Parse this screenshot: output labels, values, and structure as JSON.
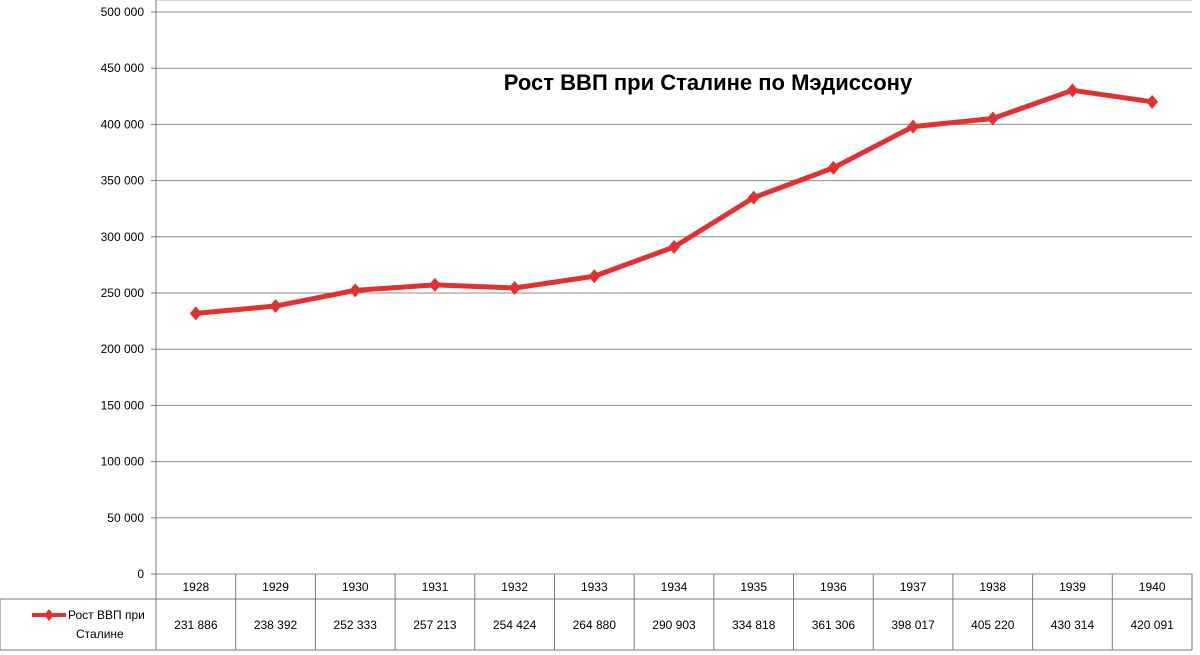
{
  "chart_data": {
    "type": "line",
    "title": "Рост ВВП при Сталине  по Мэдиссону",
    "categories": [
      "1928",
      "1929",
      "1930",
      "1931",
      "1932",
      "1933",
      "1934",
      "1935",
      "1936",
      "1937",
      "1938",
      "1939",
      "1940"
    ],
    "series": [
      {
        "name": "Рост ВВП при Сталине",
        "values": [
          231886,
          238392,
          252333,
          257213,
          254424,
          264880,
          290903,
          334818,
          361306,
          398017,
          405220,
          430314,
          420091
        ],
        "labels": [
          "231 886",
          "238 392",
          "252 333",
          "257 213",
          "254 424",
          "264 880",
          "290 903",
          "334 818",
          "361 306",
          "398 017",
          "405 220",
          "430 314",
          "420 091"
        ],
        "color": "#e03232"
      }
    ],
    "ylim": [
      0,
      500000
    ],
    "yticks": [
      0,
      50000,
      100000,
      150000,
      200000,
      250000,
      300000,
      350000,
      400000,
      450000,
      500000
    ],
    "ytick_labels": [
      "0",
      "50 000",
      "100 000",
      "150 000",
      "200 000",
      "250 000",
      "300 000",
      "350 000",
      "400 000",
      "450 000",
      "500 000"
    ],
    "grid": true,
    "data_table": true
  }
}
